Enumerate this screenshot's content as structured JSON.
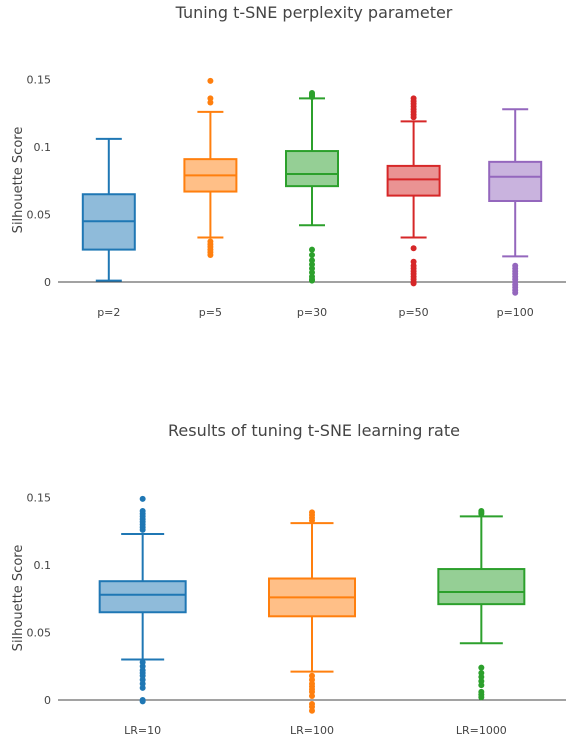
{
  "chart_data": [
    {
      "type": "box",
      "title": "Tuning t-SNE perplexity parameter",
      "xlabel": "",
      "ylabel": "Silhouette Score",
      "ylim": [
        -0.01,
        0.155
      ],
      "yticks": [
        0,
        0.05,
        0.1,
        0.15
      ],
      "ytick_labels": [
        "0",
        "0.05",
        "0.1",
        "0.15"
      ],
      "grid": false,
      "series": [
        {
          "category": "p=2",
          "color": "#1f77b4",
          "fill": "#8fbbda",
          "min": 0.001,
          "q1": 0.024,
          "median": 0.045,
          "q3": 0.065,
          "max": 0.106,
          "outliers": []
        },
        {
          "category": "p=5",
          "color": "#ff7f0e",
          "fill": "#ffbf87",
          "min": 0.033,
          "q1": 0.067,
          "median": 0.079,
          "q3": 0.091,
          "max": 0.126,
          "outliers": [
            0.149,
            0.136,
            0.133,
            0.03,
            0.028,
            0.026,
            0.024,
            0.022,
            0.02
          ]
        },
        {
          "category": "p=30",
          "color": "#2ca02c",
          "fill": "#95cf95",
          "min": 0.042,
          "q1": 0.071,
          "median": 0.08,
          "q3": 0.097,
          "max": 0.136,
          "outliers": [
            0.14,
            0.139,
            0.138,
            0.137,
            0.024,
            0.02,
            0.016,
            0.013,
            0.01,
            0.007,
            0.004,
            0.002,
            0.001
          ]
        },
        {
          "category": "p=50",
          "color": "#d62728",
          "fill": "#ea9393",
          "min": 0.033,
          "q1": 0.064,
          "median": 0.076,
          "q3": 0.086,
          "max": 0.119,
          "outliers": [
            0.136,
            0.134,
            0.132,
            0.13,
            0.128,
            0.126,
            0.124,
            0.122,
            0.025,
            0.015,
            0.012,
            0.01,
            0.008,
            0.006,
            0.004,
            0.002,
            0.0,
            -0.001
          ]
        },
        {
          "category": "p=100",
          "color": "#9467bd",
          "fill": "#c9b3de",
          "min": 0.019,
          "q1": 0.06,
          "median": 0.078,
          "q3": 0.089,
          "max": 0.128,
          "outliers": [
            0.012,
            0.01,
            0.008,
            0.006,
            0.004,
            0.002,
            0.0,
            -0.002,
            -0.004,
            -0.006,
            -0.008
          ]
        }
      ]
    },
    {
      "type": "box",
      "title": "Results of tuning t-SNE learning rate",
      "xlabel": "",
      "ylabel": "Silhouette Score",
      "ylim": [
        -0.01,
        0.155
      ],
      "yticks": [
        0,
        0.05,
        0.1,
        0.15
      ],
      "ytick_labels": [
        "0",
        "0.05",
        "0.1",
        "0.15"
      ],
      "grid": false,
      "series": [
        {
          "category": "LR=10",
          "color": "#1f77b4",
          "fill": "#8fbbda",
          "min": 0.03,
          "q1": 0.065,
          "median": 0.078,
          "q3": 0.088,
          "max": 0.123,
          "outliers": [
            0.149,
            0.14,
            0.138,
            0.136,
            0.134,
            0.132,
            0.13,
            0.128,
            0.126,
            0.028,
            0.025,
            0.022,
            0.02,
            0.018,
            0.015,
            0.012,
            0.009,
            0.0,
            -0.001
          ]
        },
        {
          "category": "LR=100",
          "color": "#ff7f0e",
          "fill": "#ffbf87",
          "min": 0.021,
          "q1": 0.062,
          "median": 0.076,
          "q3": 0.09,
          "max": 0.131,
          "outliers": [
            0.139,
            0.137,
            0.135,
            0.133,
            0.018,
            0.015,
            0.012,
            0.01,
            0.008,
            0.006,
            0.003,
            -0.003,
            -0.005,
            -0.008
          ]
        },
        {
          "category": "LR=1000",
          "color": "#2ca02c",
          "fill": "#95cf95",
          "min": 0.042,
          "q1": 0.071,
          "median": 0.08,
          "q3": 0.097,
          "max": 0.136,
          "outliers": [
            0.14,
            0.139,
            0.138,
            0.024,
            0.02,
            0.017,
            0.014,
            0.011,
            0.006,
            0.004,
            0.002
          ]
        }
      ]
    }
  ]
}
